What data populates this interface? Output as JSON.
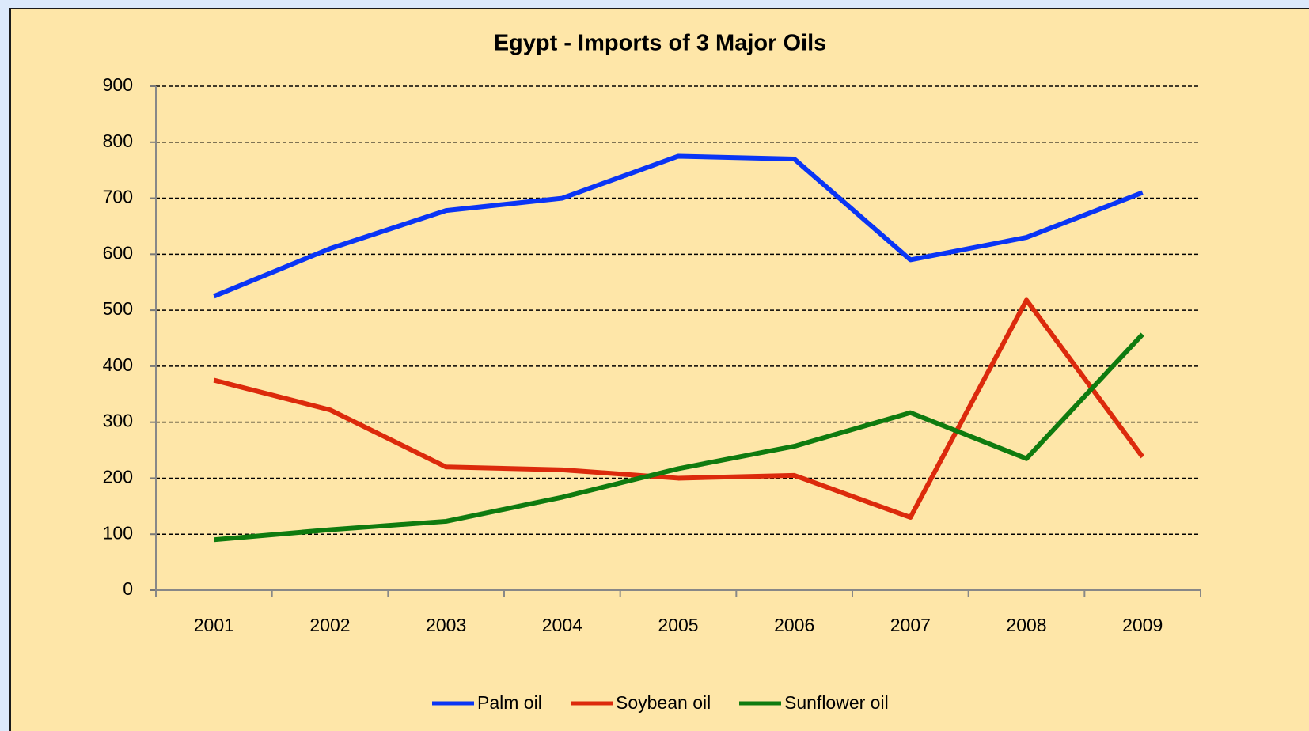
{
  "chart_data": {
    "type": "line",
    "title": "Egypt - Imports of 3 Major Oils",
    "categories": [
      "2001",
      "2002",
      "2003",
      "2004",
      "2005",
      "2006",
      "2007",
      "2008",
      "2009"
    ],
    "series": [
      {
        "name": "Palm oil",
        "color": "#0a35f5",
        "values": [
          525,
          610,
          678,
          700,
          775,
          770,
          590,
          630,
          710
        ]
      },
      {
        "name": "Soybean oil",
        "color": "#dc2a0c",
        "values": [
          375,
          322,
          220,
          215,
          200,
          205,
          130,
          518,
          238
        ]
      },
      {
        "name": "Sunflower oil",
        "color": "#0f7b0f",
        "values": [
          90,
          108,
          123,
          166,
          217,
          257,
          317,
          235,
          457
        ]
      }
    ],
    "ylim": [
      0,
      900
    ],
    "yticks": [
      0,
      100,
      200,
      300,
      400,
      500,
      600,
      700,
      800,
      900
    ],
    "grid": true,
    "legend": "bottom"
  }
}
